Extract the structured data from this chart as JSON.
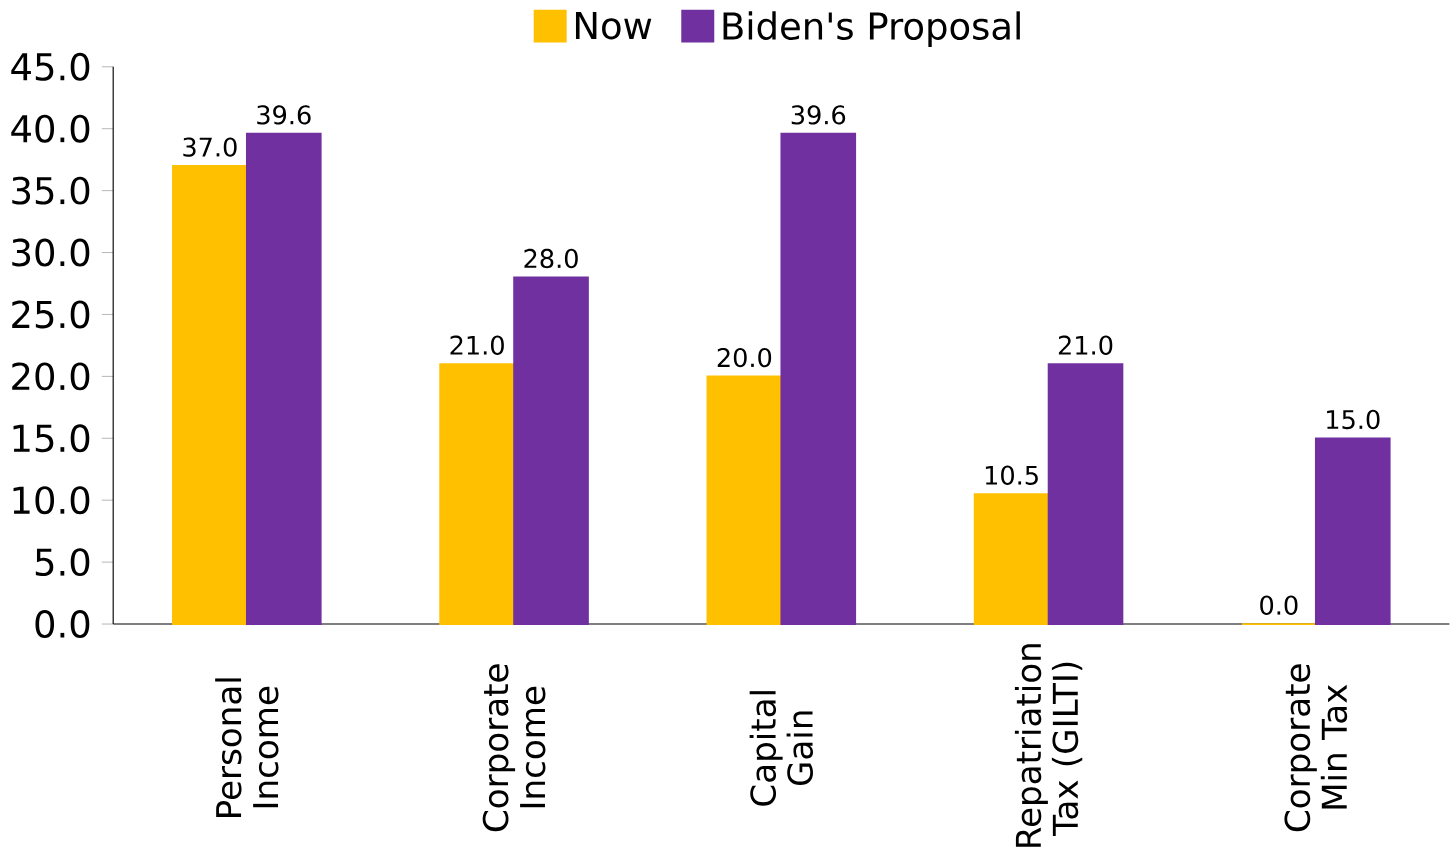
{
  "chart_data": {
    "type": "bar",
    "categories": [
      "Personal Income",
      "Corporate Income",
      "Capital Gain",
      "Repatriation Tax (GILTI)",
      "Corporate Min Tax"
    ],
    "series": [
      {
        "name": "Now",
        "color": "#ffc000",
        "values": [
          37.0,
          21.0,
          20.0,
          10.5,
          0.0
        ],
        "value_labels": [
          "37.0",
          "21.0",
          "20.0",
          "10.5",
          "0.0"
        ]
      },
      {
        "name": "Biden's Proposal",
        "color": "#7030a0",
        "values": [
          39.6,
          28.0,
          39.6,
          21.0,
          15.0
        ],
        "value_labels": [
          "39.6",
          "28.0",
          "39.6",
          "21.0",
          "15.0"
        ]
      }
    ],
    "ylim": [
      0,
      45
    ],
    "yticks": [
      {
        "value": 0,
        "label": "0.0"
      },
      {
        "value": 5,
        "label": "5.0"
      },
      {
        "value": 10,
        "label": "10.0"
      },
      {
        "value": 15,
        "label": "15.0"
      },
      {
        "value": 20,
        "label": "20.0"
      },
      {
        "value": 25,
        "label": "25.0"
      },
      {
        "value": 30,
        "label": "30.0"
      },
      {
        "value": 35,
        "label": "35.0"
      },
      {
        "value": 40,
        "label": "40.0"
      },
      {
        "value": 45,
        "label": "45.0"
      }
    ],
    "legend": "top",
    "grid": false
  }
}
